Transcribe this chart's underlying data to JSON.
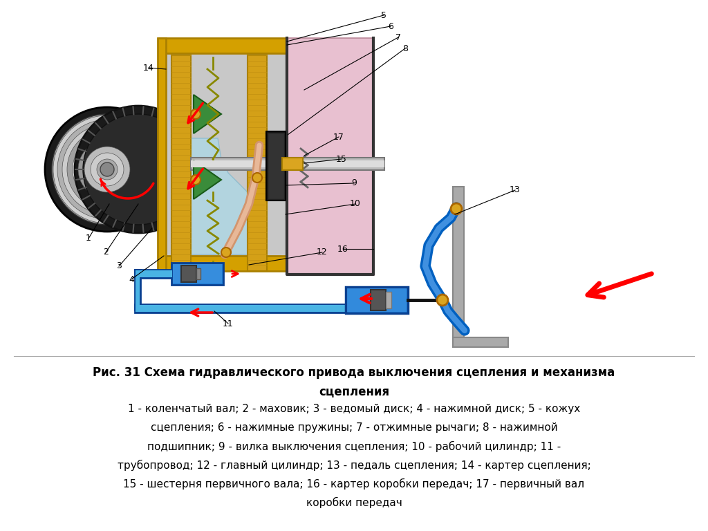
{
  "title_line1": "Рис. 31 Схема гидравлического привода выключения сцепления и механизма",
  "title_line2": "сцепления",
  "caption_line1": "1 - коленчатый вал; 2 - маховик; 3 - ведомый диск; 4 - нажимной диск; 5 - кожух",
  "caption_line2": "сцепления; 6 - нажимные пружины; 7 - отжимные рычаги; 8 - нажимной",
  "caption_line3": "подшипник; 9 - вилка выключения сцепления; 10 - рабочий цилиндр; 11 -",
  "caption_line4": "трубопровод; 12 - главный цилиндр; 13 - педаль сцепления; 14 - картер сцепления;",
  "caption_line5": "15 - шестерня первичного вала; 16 - картер коробки передач; 17 - первичный вал",
  "caption_line6": "коробки передач",
  "text_color": "#000000",
  "font_size_title": 12,
  "font_size_caption": 11,
  "bg_white": "#ffffff",
  "yellow": "#d4a000",
  "yellow_light": "#e8c840",
  "blue_cyl": "#1e90ff",
  "blue_pipe": "#00bfff",
  "blue_pedal": "#1565c0",
  "pink": "#e8c8d8",
  "green": "#228B22",
  "gray_dark": "#444444",
  "gray_med": "#888888",
  "gray_light": "#cccccc",
  "beige": "#d2b48c",
  "gold": "#daa520"
}
